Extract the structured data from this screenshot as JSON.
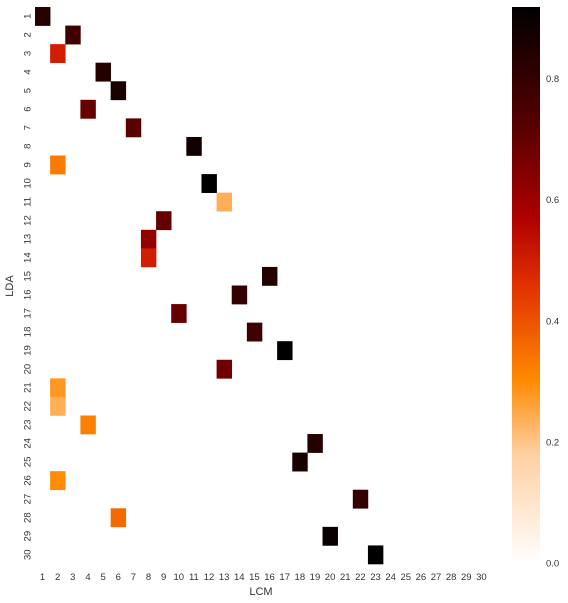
{
  "chart_data": {
    "type": "heatmap",
    "xlabel": "LCM",
    "ylabel": "LDA",
    "x_categories": [
      "1",
      "2",
      "3",
      "4",
      "5",
      "6",
      "7",
      "8",
      "9",
      "10",
      "11",
      "12",
      "13",
      "14",
      "15",
      "16",
      "17",
      "18",
      "19",
      "20",
      "21",
      "22",
      "23",
      "24",
      "25",
      "26",
      "27",
      "28",
      "29",
      "30"
    ],
    "y_categories": [
      "1",
      "2",
      "3",
      "4",
      "5",
      "6",
      "7",
      "8",
      "9",
      "10",
      "11",
      "12",
      "13",
      "14",
      "15",
      "16",
      "17",
      "18",
      "19",
      "20",
      "21",
      "22",
      "23",
      "24",
      "25",
      "26",
      "27",
      "28",
      "29",
      "30"
    ],
    "cells": [
      {
        "x": "1",
        "y": "1",
        "value": 0.83
      },
      {
        "x": "3",
        "y": "2",
        "value": 0.78
      },
      {
        "x": "2",
        "y": "3",
        "value": 0.5
      },
      {
        "x": "5",
        "y": "4",
        "value": 0.84
      },
      {
        "x": "6",
        "y": "5",
        "value": 0.86
      },
      {
        "x": "4",
        "y": "6",
        "value": 0.7
      },
      {
        "x": "7",
        "y": "7",
        "value": 0.72
      },
      {
        "x": "11",
        "y": "8",
        "value": 0.88
      },
      {
        "x": "2",
        "y": "9",
        "value": 0.33
      },
      {
        "x": "12",
        "y": "10",
        "value": 0.92
      },
      {
        "x": "13",
        "y": "11",
        "value": 0.24
      },
      {
        "x": "9",
        "y": "12",
        "value": 0.7
      },
      {
        "x": "8",
        "y": "13",
        "value": 0.62
      },
      {
        "x": "8",
        "y": "14",
        "value": 0.5
      },
      {
        "x": "16",
        "y": "15",
        "value": 0.84
      },
      {
        "x": "14",
        "y": "16",
        "value": 0.8
      },
      {
        "x": "10",
        "y": "17",
        "value": 0.7
      },
      {
        "x": "15",
        "y": "18",
        "value": 0.78
      },
      {
        "x": "17",
        "y": "19",
        "value": 0.92
      },
      {
        "x": "13",
        "y": "20",
        "value": 0.68
      },
      {
        "x": "2",
        "y": "21",
        "value": 0.28
      },
      {
        "x": "2",
        "y": "22",
        "value": 0.24
      },
      {
        "x": "4",
        "y": "23",
        "value": 0.32
      },
      {
        "x": "19",
        "y": "24",
        "value": 0.84
      },
      {
        "x": "18",
        "y": "25",
        "value": 0.86
      },
      {
        "x": "2",
        "y": "26",
        "value": 0.3
      },
      {
        "x": "22",
        "y": "27",
        "value": 0.8
      },
      {
        "x": "6",
        "y": "28",
        "value": 0.36
      },
      {
        "x": "20",
        "y": "29",
        "value": 0.9
      },
      {
        "x": "23",
        "y": "30",
        "value": 0.92
      }
    ],
    "colorbar": {
      "colormap": "gist_heat_r",
      "range": [
        0.0,
        0.92
      ],
      "ticks": [
        0.0,
        0.2,
        0.4,
        0.6,
        0.8
      ],
      "tick_labels": [
        "0.0",
        "0.2",
        "0.4",
        "0.6",
        "0.8"
      ]
    },
    "colors": {
      "low": "#ffffff",
      "mid_low": "#ff8a00",
      "mid": "#c00000",
      "high": "#000000"
    },
    "background": "#ffffff"
  }
}
